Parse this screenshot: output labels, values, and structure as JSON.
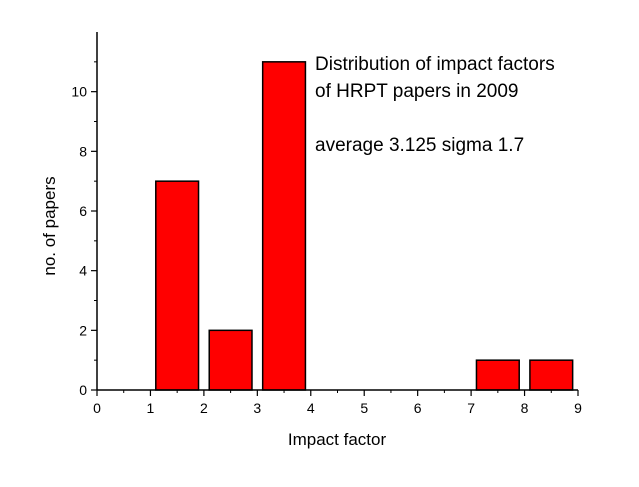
{
  "chart_data": {
    "type": "bar",
    "bars": [
      {
        "x0": 1.1,
        "x1": 1.9,
        "value": 7
      },
      {
        "x0": 2.1,
        "x1": 2.9,
        "value": 2
      },
      {
        "x0": 3.1,
        "x1": 3.9,
        "value": 11
      },
      {
        "x0": 7.1,
        "x1": 7.9,
        "value": 1
      },
      {
        "x0": 8.1,
        "x1": 8.9,
        "value": 1
      }
    ],
    "xlabel": "Impact factor",
    "ylabel": "no. of papers",
    "xlim": [
      0,
      9
    ],
    "ylim": [
      0,
      12
    ],
    "x_ticks": [
      "0",
      "1",
      "2",
      "3",
      "4",
      "5",
      "6",
      "7",
      "8",
      "9"
    ],
    "y_ticks": [
      "0",
      "2",
      "4",
      "6",
      "8",
      "10"
    ],
    "annotation_lines": [
      "Distribution of impact factors",
      "of HRPT papers in 2009",
      "average 3.125 sigma 1.7"
    ],
    "grid": false,
    "bar_color": "#ff0000",
    "bar_edge_color": "#000000"
  }
}
